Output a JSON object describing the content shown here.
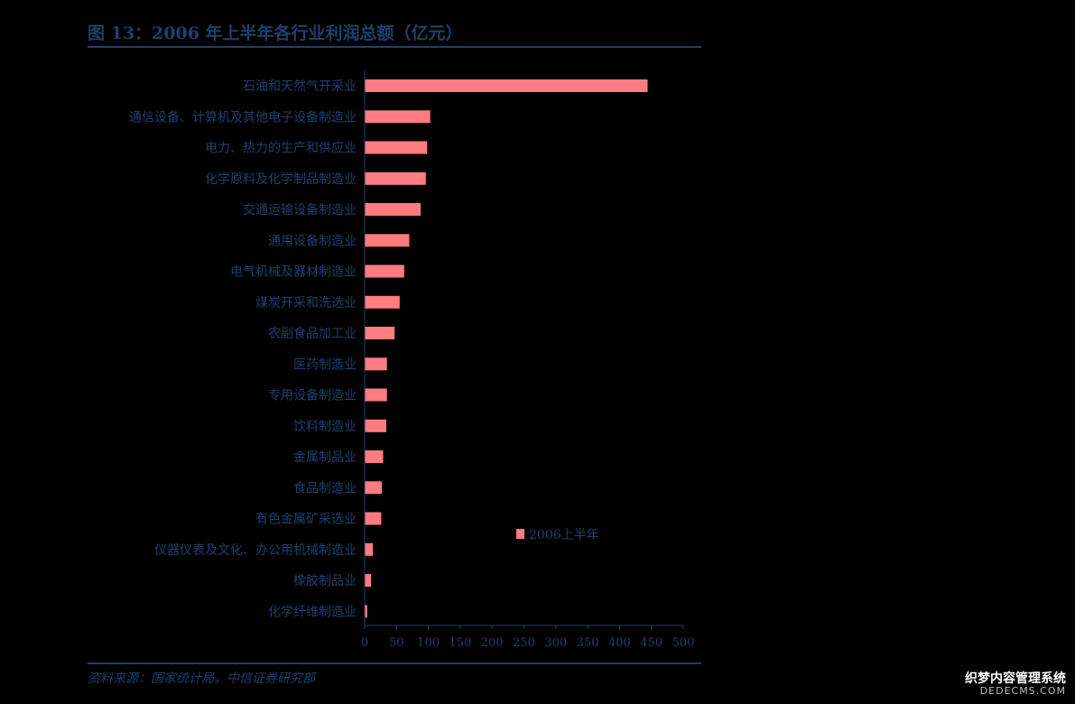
{
  "header": {
    "title": "图 13：2006 年上半年各行业利润总额（亿元）"
  },
  "footer": {
    "source": "资料来源：国家统计局，中信证券研究部"
  },
  "watermark": {
    "line1": "织梦内容管理系统",
    "line2": "DEDECMS.COM"
  },
  "colors": {
    "bar": "#ff7c80",
    "text": "#1f3f6b",
    "axis": "#1f3f6b"
  },
  "chart_data": {
    "type": "bar",
    "orientation": "horizontal",
    "title": "图 13：2006 年上半年各行业利润总额（亿元）",
    "xlim": [
      0,
      500
    ],
    "xticks": [
      0,
      50,
      100,
      150,
      200,
      250,
      300,
      350,
      400,
      450,
      500
    ],
    "grid": false,
    "legend": "bottom-right",
    "categories": [
      "石油和天然气开采业",
      "通信设备、计算机及其他电子设备制造业",
      "电力、热力的生产和供应业",
      "化学原料及化学制品制造业",
      "交通运输设备制造业",
      "通用设备制造业",
      "电气机械及器材制造业",
      "煤炭开采和洗选业",
      "农副食品加工业",
      "医药制造业",
      "专用设备制造业",
      "饮料制造业",
      "金属制品业",
      "食品制造业",
      "有色金属矿采选业",
      "仪器仪表及文化、办公用机械制造业",
      "橡胶制品业",
      "化学纤维制造业"
    ],
    "series": [
      {
        "name": "2006上半年",
        "values": [
          444,
          103,
          98,
          96,
          88,
          70,
          62,
          55,
          47,
          35,
          35,
          34,
          29,
          27,
          26,
          13,
          10,
          4
        ]
      }
    ]
  }
}
